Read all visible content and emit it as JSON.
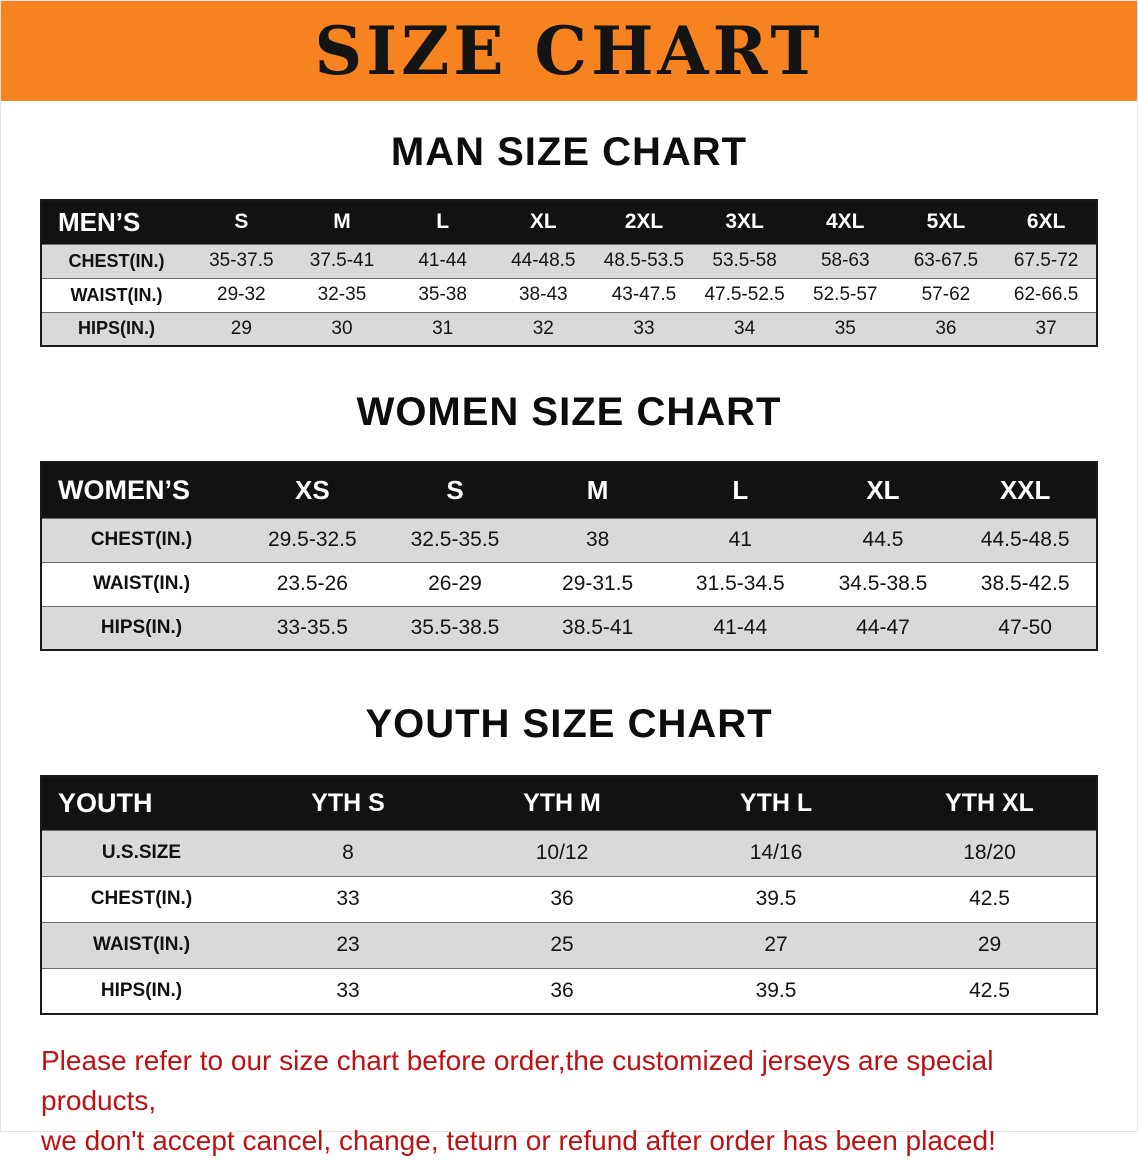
{
  "banner": {
    "title": "SIZE CHART"
  },
  "colors": {
    "banner_bg": "#f6831f",
    "header_bg": "#121212",
    "header_text": "#ffffff",
    "row_shaded": "#d9d9d9",
    "disclaimer_text": "#bf1111"
  },
  "sections": [
    {
      "id": "men",
      "heading": "MAN SIZE CHART",
      "table": {
        "label_header": "MEN’S",
        "columns": [
          "S",
          "M",
          "L",
          "XL",
          "2XL",
          "3XL",
          "4XL",
          "5XL",
          "6XL"
        ],
        "rows": [
          {
            "label": "CHEST(IN.)",
            "shaded": true,
            "values": [
              "35-37.5",
              "37.5-41",
              "41-44",
              "44-48.5",
              "48.5-53.5",
              "53.5-58",
              "58-63",
              "63-67.5",
              "67.5-72"
            ]
          },
          {
            "label": "WAIST(IN.)",
            "shaded": false,
            "values": [
              "29-32",
              "32-35",
              "35-38",
              "38-43",
              "43-47.5",
              "47.5-52.5",
              "52.5-57",
              "57-62",
              "62-66.5"
            ]
          },
          {
            "label": "HIPS(IN.)",
            "shaded": true,
            "values": [
              "29",
              "30",
              "31",
              "32",
              "33",
              "34",
              "35",
              "36",
              "37"
            ]
          }
        ]
      }
    },
    {
      "id": "women",
      "heading": "WOMEN SIZE CHART",
      "table": {
        "label_header": "WOMEN’S",
        "columns": [
          "XS",
          "S",
          "M",
          "L",
          "XL",
          "XXL"
        ],
        "rows": [
          {
            "label": "CHEST(IN.)",
            "shaded": true,
            "values": [
              "29.5-32.5",
              "32.5-35.5",
              "38",
              "41",
              "44.5",
              "44.5-48.5"
            ]
          },
          {
            "label": "WAIST(IN.)",
            "shaded": false,
            "values": [
              "23.5-26",
              "26-29",
              "29-31.5",
              "31.5-34.5",
              "34.5-38.5",
              "38.5-42.5"
            ]
          },
          {
            "label": "HIPS(IN.)",
            "shaded": true,
            "values": [
              "33-35.5",
              "35.5-38.5",
              "38.5-41",
              "41-44",
              "44-47",
              "47-50"
            ]
          }
        ]
      }
    },
    {
      "id": "youth",
      "heading": "YOUTH SIZE CHART",
      "table": {
        "label_header": "YOUTH",
        "columns": [
          "YTH S",
          "YTH M",
          "YTH L",
          "YTH XL"
        ],
        "rows": [
          {
            "label": "U.S.SIZE",
            "shaded": true,
            "values": [
              "8",
              "10/12",
              "14/16",
              "18/20"
            ]
          },
          {
            "label": "CHEST(IN.)",
            "shaded": false,
            "values": [
              "33",
              "36",
              "39.5",
              "42.5"
            ]
          },
          {
            "label": "WAIST(IN.)",
            "shaded": true,
            "values": [
              "23",
              "25",
              "27",
              "29"
            ]
          },
          {
            "label": "HIPS(IN.)",
            "shaded": false,
            "values": [
              "33",
              "36",
              "39.5",
              "42.5"
            ]
          }
        ]
      }
    }
  ],
  "footer": {
    "lines": [
      "Please refer to our size chart before order,the customized jerseys are special products,",
      "we don't accept cancel, change, teturn or refund after order has been placed!"
    ]
  }
}
